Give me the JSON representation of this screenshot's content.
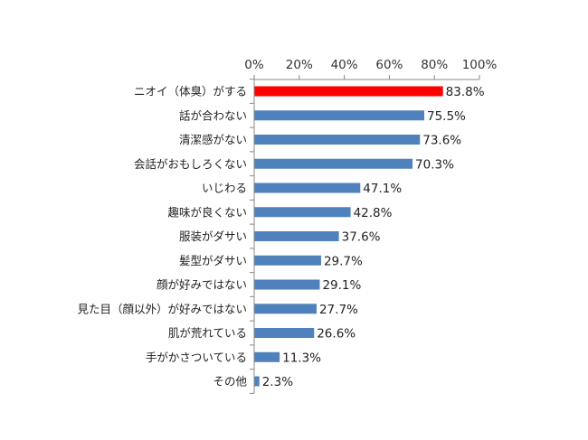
{
  "chart_data": {
    "type": "bar",
    "orientation": "horizontal",
    "categories": [
      "ニオイ（体臭）がする",
      "話が合わない",
      "清潔感がない",
      "会話がおもしろくない",
      "いじわる",
      "趣味が良くない",
      "服装がダサい",
      "髪型がダサい",
      "顔が好みではない",
      "見た目（顔以外）が好みではない",
      "肌が荒れている",
      "手がかさついている",
      "その他"
    ],
    "values": [
      83.8,
      75.5,
      73.6,
      70.3,
      47.1,
      42.8,
      37.6,
      29.7,
      29.1,
      27.7,
      26.6,
      11.3,
      2.3
    ],
    "value_labels": [
      "83.8%",
      "75.5%",
      "73.6%",
      "70.3%",
      "47.1%",
      "42.8%",
      "37.6%",
      "29.7%",
      "29.1%",
      "27.7%",
      "26.6%",
      "11.3%",
      "2.3%"
    ],
    "xlim": [
      0,
      100
    ],
    "x_ticks": [
      0,
      20,
      40,
      60,
      80,
      100
    ],
    "x_tick_labels": [
      "0%",
      "20%",
      "40%",
      "60%",
      "80%",
      "100%"
    ],
    "x_axis_position": "top",
    "grid": false,
    "colors": {
      "default_bar": "#4F81BD",
      "highlight_bar": "#FF0000",
      "axis": "#888888"
    },
    "highlight_index": 0
  }
}
